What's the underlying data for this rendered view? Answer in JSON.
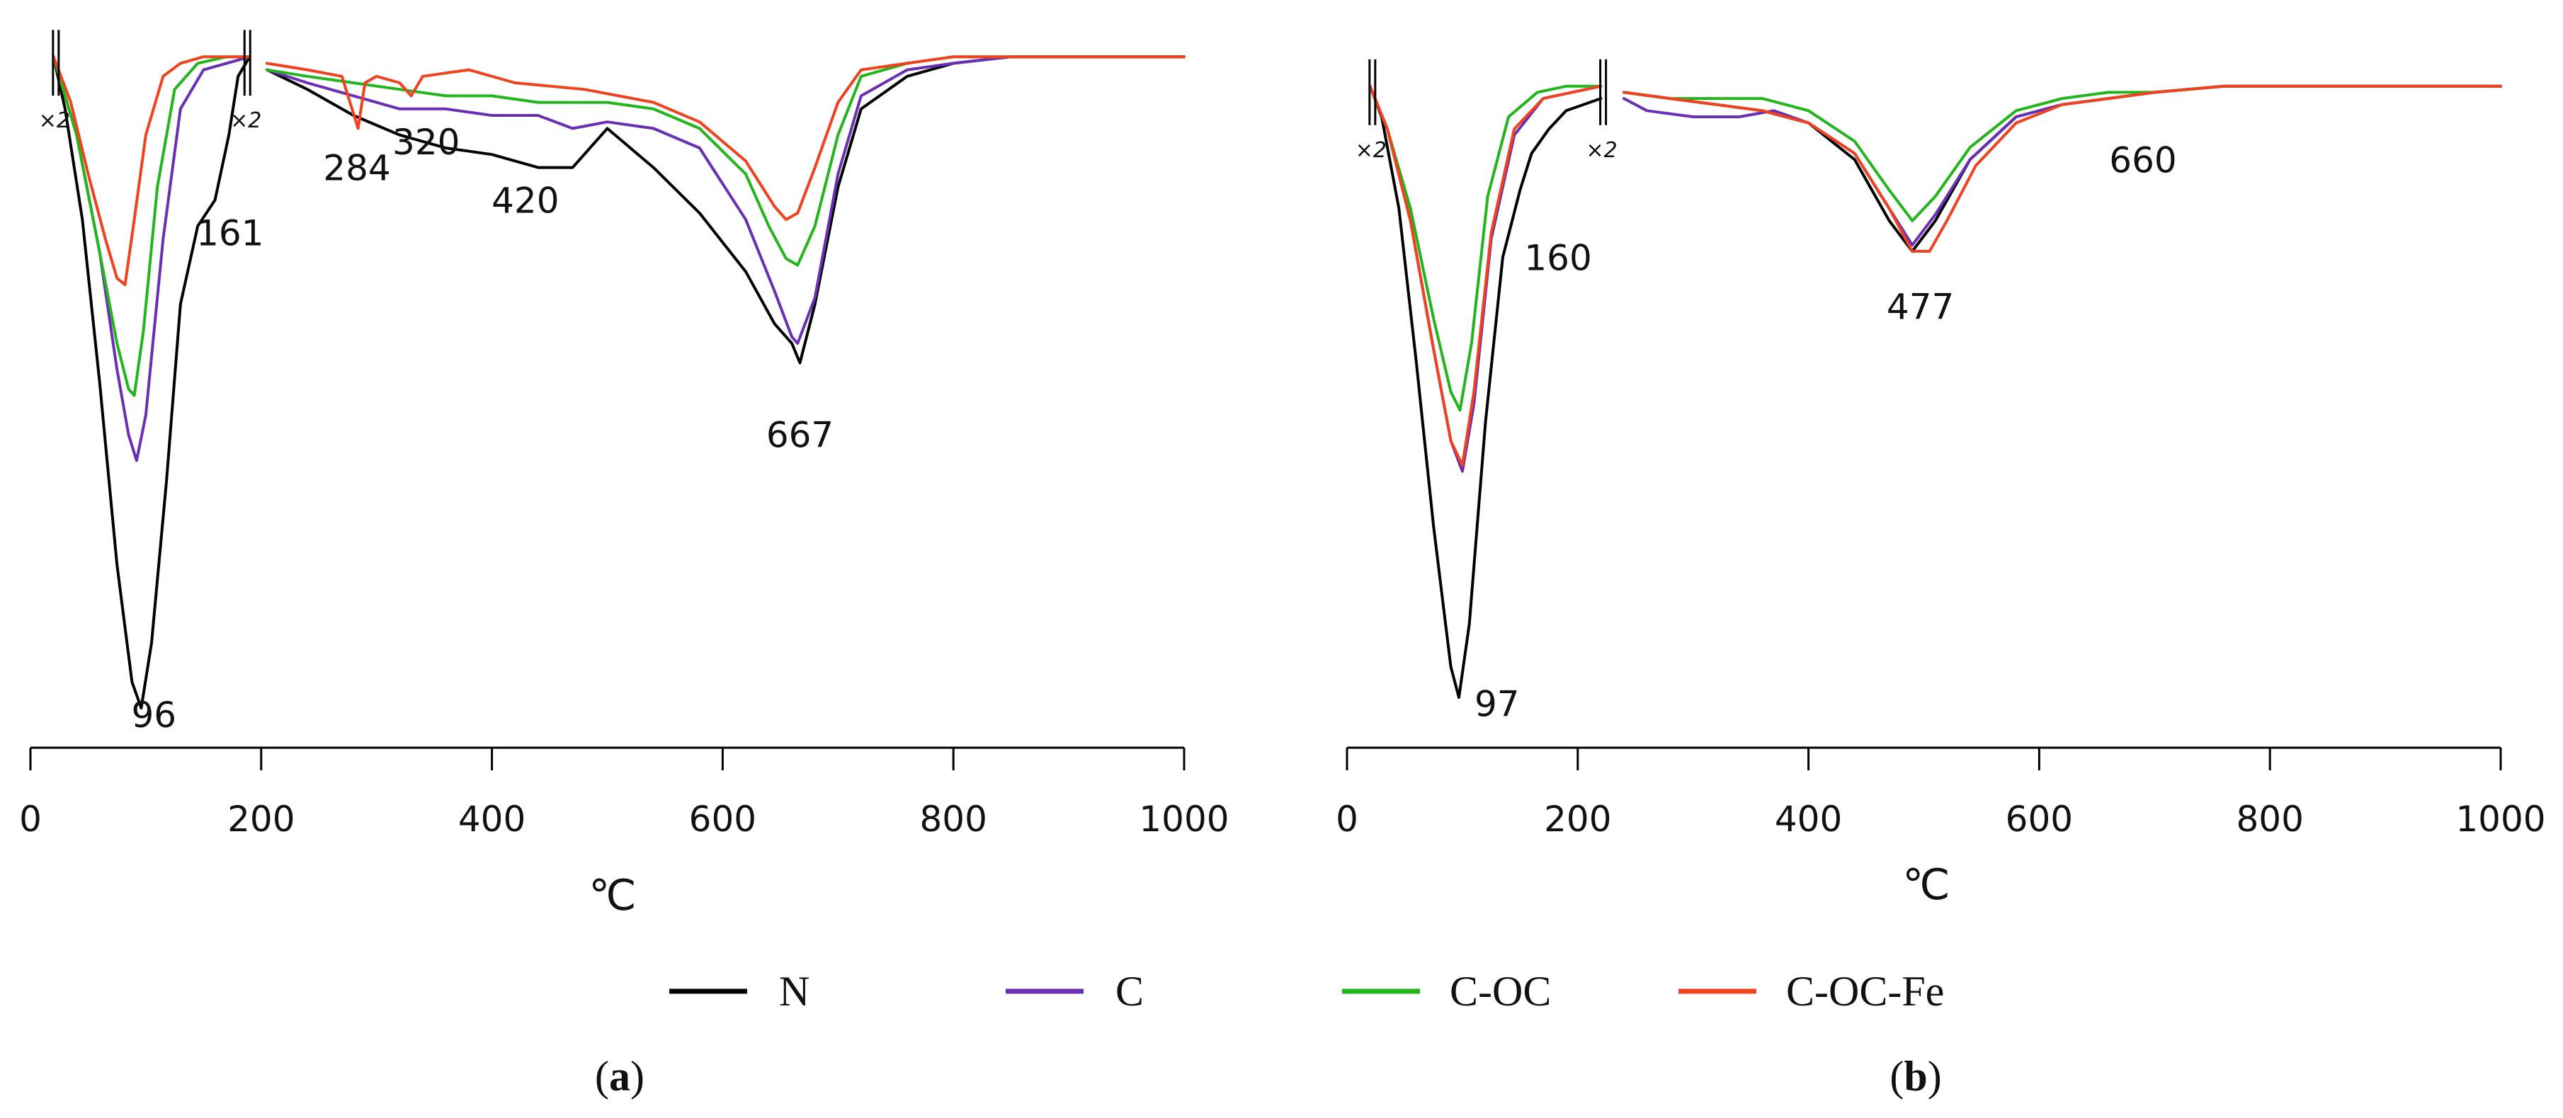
{
  "chart_data": [
    {
      "type": "line",
      "panel_label": {
        "open": "(",
        "letter": "a",
        "close": ")"
      },
      "xlabel": "℃",
      "ylabel": "",
      "xlim": [
        0,
        1000
      ],
      "ylim": [
        -100,
        6
      ],
      "x_ticks": [
        0,
        200,
        400,
        600,
        800,
        1000
      ],
      "x_tick_labels": [
        "0",
        "200",
        "400",
        "600",
        "800",
        "1000"
      ],
      "segments": [
        [
          20,
          190
        ],
        [
          205,
          1000
        ]
      ],
      "break_markers": [
        {
          "x": 22,
          "label": "×2"
        },
        {
          "x": 188,
          "label": "×2"
        }
      ],
      "series": [
        {
          "name": "N",
          "color": "#000000",
          "x": [
            20,
            30,
            45,
            60,
            75,
            88,
            96,
            105,
            118,
            130,
            145,
            160,
            172,
            180,
            190,
            205,
            240,
            280,
            320,
            360,
            400,
            440,
            470,
            500,
            540,
            580,
            620,
            645,
            660,
            667,
            680,
            700,
            720,
            760,
            800,
            850,
            900,
            950,
            1000
          ],
          "y": [
            0,
            -8,
            -25,
            -50,
            -78,
            -96,
            -100,
            -90,
            -65,
            -38,
            -26,
            -22,
            -12,
            -3,
            0,
            -2,
            -5,
            -9,
            -12,
            -14,
            -15,
            -17,
            -17,
            -11,
            -17,
            -24,
            -33,
            -41,
            -44,
            -47,
            -38,
            -20,
            -8,
            -3,
            -1,
            0,
            0,
            0,
            0
          ]
        },
        {
          "name": "C",
          "color": "#6a2fb5",
          "x": [
            20,
            40,
            60,
            75,
            85,
            92,
            100,
            115,
            130,
            150,
            170,
            190,
            205,
            240,
            280,
            320,
            360,
            400,
            440,
            470,
            500,
            540,
            580,
            620,
            645,
            660,
            665,
            680,
            700,
            720,
            760,
            800,
            850,
            900,
            950,
            1000
          ],
          "y": [
            0,
            -12,
            -30,
            -48,
            -58,
            -62,
            -55,
            -28,
            -8,
            -2,
            -1,
            0,
            -2,
            -4,
            -6,
            -8,
            -8,
            -9,
            -9,
            -11,
            -10,
            -11,
            -14,
            -25,
            -36,
            -43,
            -44,
            -37,
            -18,
            -6,
            -2,
            -1,
            0,
            0,
            0,
            0
          ]
        },
        {
          "name": "C-OC",
          "color": "#22b51c",
          "x": [
            20,
            40,
            60,
            75,
            85,
            90,
            98,
            110,
            125,
            145,
            170,
            190,
            205,
            240,
            280,
            320,
            360,
            400,
            440,
            500,
            540,
            580,
            620,
            640,
            655,
            665,
            680,
            700,
            720,
            760,
            800,
            850,
            900,
            950,
            1000
          ],
          "y": [
            0,
            -12,
            -30,
            -44,
            -51,
            -52,
            -42,
            -20,
            -5,
            -1,
            0,
            0,
            -2,
            -3,
            -4,
            -5,
            -6,
            -6,
            -7,
            -7,
            -8,
            -11,
            -18,
            -26,
            -31,
            -32,
            -26,
            -12,
            -3,
            -1,
            0,
            0,
            0,
            0,
            0
          ]
        },
        {
          "name": "C-OC-Fe",
          "color": "#f0421e",
          "x": [
            20,
            35,
            50,
            65,
            75,
            82,
            90,
            100,
            115,
            130,
            150,
            170,
            190,
            205,
            240,
            270,
            284,
            290,
            300,
            320,
            330,
            340,
            380,
            420,
            480,
            540,
            580,
            620,
            645,
            655,
            665,
            680,
            700,
            720,
            760,
            800,
            850,
            900,
            950,
            1000
          ],
          "y": [
            0,
            -7,
            -18,
            -28,
            -34,
            -35,
            -25,
            -12,
            -3,
            -1,
            0,
            0,
            0,
            -1,
            -2,
            -3,
            -11,
            -4,
            -3,
            -4,
            -6,
            -3,
            -2,
            -4,
            -5,
            -7,
            -10,
            -16,
            -23,
            -25,
            -24,
            -17,
            -7,
            -2,
            -1,
            0,
            0,
            0,
            0,
            0
          ]
        }
      ],
      "annotations": [
        {
          "text": "96",
          "x": 107,
          "y": -101
        },
        {
          "text": "161",
          "x": 173,
          "y": -27
        },
        {
          "text": "284",
          "x": 283,
          "y": -17
        },
        {
          "text": "320",
          "x": 343,
          "y": -13
        },
        {
          "text": "420",
          "x": 429,
          "y": -22
        },
        {
          "text": "667",
          "x": 667,
          "y": -58
        }
      ]
    },
    {
      "type": "line",
      "panel_label": {
        "open": "(",
        "letter": "b",
        "close": ")"
      },
      "xlabel": "℃",
      "ylabel": "",
      "xlim": [
        0,
        1000
      ],
      "ylim": [
        -100,
        6
      ],
      "x_ticks": [
        0,
        200,
        400,
        600,
        800,
        1000
      ],
      "x_tick_labels": [
        "0",
        "200",
        "400",
        "600",
        "800",
        "1000"
      ],
      "segments": [
        [
          20,
          220
        ],
        [
          240,
          1000
        ]
      ],
      "break_markers": [
        {
          "x": 22,
          "label": "×2"
        },
        {
          "x": 222,
          "label": "×2"
        }
      ],
      "series": [
        {
          "name": "N",
          "color": "#000000",
          "x": [
            20,
            30,
            45,
            60,
            75,
            90,
            97,
            106,
            120,
            135,
            150,
            160,
            175,
            190,
            205,
            220,
            240,
            280,
            320,
            360,
            400,
            440,
            470,
            490,
            510,
            540,
            580,
            620,
            660,
            700,
            760,
            800,
            850,
            900,
            950,
            1000
          ],
          "y": [
            0,
            -5,
            -20,
            -45,
            -72,
            -95,
            -100,
            -88,
            -55,
            -28,
            -17,
            -11,
            -7,
            -4,
            -3,
            -2,
            -1,
            -2,
            -3,
            -4,
            -6,
            -12,
            -22,
            -27,
            -22,
            -12,
            -5,
            -3,
            -2,
            -1,
            0,
            0,
            0,
            0,
            0,
            0
          ]
        },
        {
          "name": "C",
          "color": "#6a2fb5",
          "x": [
            20,
            35,
            55,
            75,
            90,
            100,
            110,
            125,
            145,
            170,
            195,
            220,
            240,
            260,
            300,
            340,
            370,
            400,
            440,
            470,
            490,
            510,
            540,
            580,
            620,
            660,
            700,
            760,
            800,
            850,
            900,
            950,
            1000
          ],
          "y": [
            0,
            -7,
            -22,
            -43,
            -58,
            -63,
            -52,
            -25,
            -8,
            -2,
            -1,
            0,
            -2,
            -4,
            -5,
            -5,
            -4,
            -6,
            -11,
            -20,
            -26,
            -21,
            -12,
            -5,
            -3,
            -2,
            -1,
            0,
            0,
            0,
            0,
            0,
            0
          ]
        },
        {
          "name": "C-OC",
          "color": "#22b51c",
          "x": [
            20,
            35,
            55,
            75,
            90,
            98,
            108,
            122,
            140,
            165,
            190,
            220,
            240,
            280,
            320,
            360,
            400,
            440,
            470,
            490,
            510,
            540,
            580,
            620,
            660,
            700,
            760,
            800,
            850,
            900,
            950,
            1000
          ],
          "y": [
            0,
            -7,
            -20,
            -38,
            -50,
            -53,
            -42,
            -18,
            -5,
            -1,
            0,
            0,
            -1,
            -2,
            -2,
            -2,
            -4,
            -9,
            -17,
            -22,
            -18,
            -10,
            -4,
            -2,
            -1,
            -1,
            0,
            0,
            0,
            0,
            0,
            0
          ]
        },
        {
          "name": "C-OC-Fe",
          "color": "#f0421e",
          "x": [
            20,
            35,
            55,
            75,
            90,
            100,
            110,
            125,
            145,
            170,
            195,
            220,
            240,
            280,
            320,
            360,
            400,
            440,
            470,
            490,
            505,
            520,
            545,
            580,
            620,
            660,
            700,
            760,
            800,
            850,
            900,
            950,
            1000
          ],
          "y": [
            0,
            -7,
            -22,
            -43,
            -58,
            -62,
            -50,
            -24,
            -7,
            -2,
            -1,
            0,
            -1,
            -2,
            -3,
            -4,
            -6,
            -11,
            -20,
            -27,
            -27,
            -22,
            -13,
            -6,
            -3,
            -2,
            -1,
            0,
            0,
            0,
            0,
            0,
            0
          ]
        }
      ],
      "annotations": [
        {
          "text": "97",
          "x": 130,
          "y": -101
        },
        {
          "text": "160",
          "x": 183,
          "y": -28
        },
        {
          "text": "477",
          "x": 497,
          "y": -36
        },
        {
          "text": "660",
          "x": 690,
          "y": -12
        }
      ]
    }
  ],
  "legend": {
    "placement": "bottom-center",
    "items": [
      {
        "label": "N",
        "color": "#000000"
      },
      {
        "label": "C",
        "color": "#6a2fb5"
      },
      {
        "label": "C-OC",
        "color": "#22b51c"
      },
      {
        "label": "C-OC-Fe",
        "color": "#f0421e"
      }
    ]
  }
}
